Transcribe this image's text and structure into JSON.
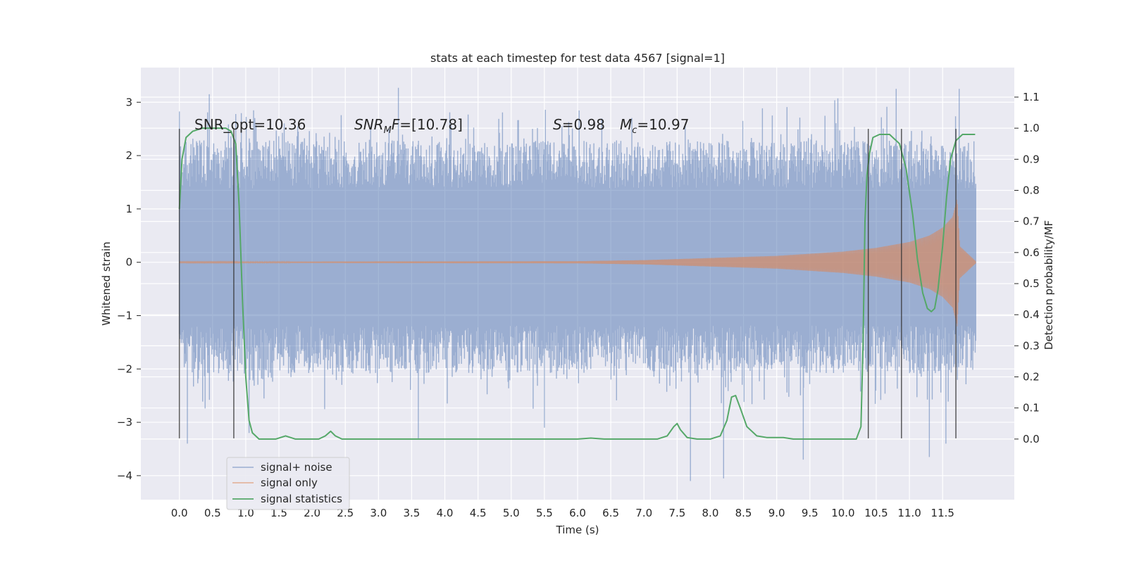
{
  "chart_data": {
    "type": "line",
    "title": "stats at each timestep for test data 4567 [signal=1]",
    "xlabel": "Time (s)",
    "ylabel": "Whitened strain",
    "y2label": "Detection probability/MF",
    "xlim": [
      -0.58,
      12.58
    ],
    "ylim": [
      -4.45,
      3.65
    ],
    "y2lim": [
      -0.195,
      1.195
    ],
    "x_ticks": [
      0.0,
      0.5,
      1.0,
      1.5,
      2.0,
      2.5,
      3.0,
      3.5,
      4.0,
      4.5,
      5.0,
      5.5,
      6.0,
      6.5,
      7.0,
      7.5,
      8.0,
      8.5,
      9.0,
      9.5,
      10.0,
      10.5,
      11.0,
      11.5
    ],
    "x_tick_labels": [
      "0.0",
      "0.5",
      "1.0",
      "1.5",
      "2.0",
      "2.5",
      "3.0",
      "3.5",
      "4.0",
      "4.5",
      "5.0",
      "5.5",
      "6.0",
      "6.5",
      "7.0",
      "7.5",
      "8.0",
      "8.5",
      "9.0",
      "9.5",
      "10.0",
      "10.5",
      "11.0",
      "11.5"
    ],
    "y_ticks": [
      -4,
      -3,
      -2,
      -1,
      0,
      1,
      2,
      3
    ],
    "y_tick_labels": [
      "−4",
      "−3",
      "−2",
      "−1",
      "0",
      "1",
      "2",
      "3"
    ],
    "y2_ticks": [
      0.0,
      0.1,
      0.2,
      0.3,
      0.4,
      0.5,
      0.6,
      0.7,
      0.8,
      0.9,
      1.0,
      1.1
    ],
    "y2_tick_labels": [
      "0.0",
      "0.1",
      "0.2",
      "0.3",
      "0.4",
      "0.5",
      "0.6",
      "0.7",
      "0.8",
      "0.9",
      "1.0",
      "1.1"
    ],
    "grid": true,
    "legend_position": "lower-left",
    "annotations": [
      {
        "text": "SNR_opt=10.36",
        "x": 0.2,
        "y": 2.5
      },
      {
        "text": "SNR_MF=[10.78]",
        "x": 2.6,
        "y": 2.5
      },
      {
        "text": "S=0.98",
        "x": 5.6,
        "y": 2.5
      },
      {
        "text": "Mc=10.97",
        "x": 6.6,
        "y": 2.5
      }
    ],
    "vertical_lines": [
      {
        "x": 0.0,
        "y_range": [
          -3.3,
          2.5
        ]
      },
      {
        "x": 0.82,
        "y_range": [
          -3.3,
          2.5
        ]
      },
      {
        "x": 10.38,
        "y_range": [
          -3.3,
          2.5
        ]
      },
      {
        "x": 10.88,
        "y_range": [
          -3.3,
          2.5
        ]
      },
      {
        "x": 11.7,
        "y_range": [
          -3.3,
          2.5
        ]
      }
    ],
    "series": [
      {
        "name": "signal+ noise",
        "axis": "left",
        "color": "#4c72b0",
        "opacity": 0.5,
        "x_range": [
          0.0,
          12.0
        ],
        "typical_band": [
          -1.5,
          1.7
        ],
        "min": -4.1,
        "max": 3.27,
        "extremes": [
          [
            0.12,
            -3.4
          ],
          [
            0.45,
            3.15
          ],
          [
            1.05,
            -3.2
          ],
          [
            3.3,
            3.27
          ],
          [
            3.6,
            -3.3
          ],
          [
            5.5,
            -3.1
          ],
          [
            7.7,
            -4.1
          ],
          [
            8.2,
            -4.05
          ],
          [
            9.4,
            -3.7
          ],
          [
            10.8,
            3.25
          ],
          [
            11.3,
            -3.65
          ],
          [
            11.55,
            -3.4
          ],
          [
            11.75,
            3.25
          ]
        ]
      },
      {
        "name": "signal only",
        "axis": "left",
        "color": "#dd8452",
        "opacity": 0.6,
        "x_range": [
          0.0,
          12.0
        ],
        "amplitude": [
          [
            0.0,
            0.01
          ],
          [
            6.0,
            0.02
          ],
          [
            7.0,
            0.04
          ],
          [
            8.0,
            0.08
          ],
          [
            9.0,
            0.12
          ],
          [
            10.0,
            0.2
          ],
          [
            10.5,
            0.27
          ],
          [
            11.0,
            0.38
          ],
          [
            11.3,
            0.5
          ],
          [
            11.5,
            0.65
          ],
          [
            11.65,
            0.85
          ],
          [
            11.72,
            1.2
          ],
          [
            11.76,
            0.3
          ],
          [
            12.0,
            0.02
          ]
        ]
      },
      {
        "name": "signal statistics",
        "axis": "right",
        "color": "#55a868",
        "x": [
          0.0,
          0.04,
          0.1,
          0.2,
          0.35,
          0.5,
          0.6,
          0.7,
          0.78,
          0.85,
          0.9,
          0.95,
          1.0,
          1.05,
          1.1,
          1.2,
          1.3,
          1.45,
          1.6,
          1.75,
          1.9,
          2.1,
          2.2,
          2.28,
          2.35,
          2.45,
          2.6,
          2.8,
          3.0,
          3.5,
          4.0,
          4.5,
          5.0,
          5.5,
          6.0,
          6.2,
          6.4,
          6.8,
          7.2,
          7.35,
          7.45,
          7.5,
          7.55,
          7.65,
          7.8,
          8.0,
          8.15,
          8.25,
          8.32,
          8.38,
          8.45,
          8.55,
          8.7,
          8.85,
          9.0,
          9.1,
          9.25,
          9.4,
          9.6,
          9.8,
          10.0,
          10.2,
          10.27,
          10.3,
          10.33,
          10.36,
          10.4,
          10.45,
          10.55,
          10.7,
          10.85,
          10.95,
          11.05,
          11.12,
          11.2,
          11.27,
          11.33,
          11.38,
          11.43,
          11.5,
          11.56,
          11.62,
          11.7,
          11.8,
          11.9,
          11.99
        ],
        "y": [
          0.74,
          0.9,
          0.97,
          0.99,
          1.0,
          1.0,
          1.0,
          1.0,
          0.99,
          0.95,
          0.75,
          0.45,
          0.2,
          0.06,
          0.02,
          0.0,
          0.0,
          0.0,
          0.01,
          0.0,
          0.0,
          0.0,
          0.01,
          0.025,
          0.01,
          0.0,
          0.0,
          0.0,
          0.0,
          0.0,
          0.0,
          0.0,
          0.0,
          0.0,
          0.0,
          0.003,
          0.0,
          0.0,
          0.0,
          0.01,
          0.04,
          0.05,
          0.03,
          0.005,
          0.0,
          0.0,
          0.01,
          0.06,
          0.135,
          0.14,
          0.1,
          0.04,
          0.01,
          0.005,
          0.005,
          0.005,
          0.0,
          0.0,
          0.0,
          0.0,
          0.0,
          0.0,
          0.04,
          0.3,
          0.7,
          0.85,
          0.92,
          0.97,
          0.98,
          0.98,
          0.95,
          0.87,
          0.72,
          0.58,
          0.47,
          0.42,
          0.41,
          0.42,
          0.48,
          0.62,
          0.78,
          0.9,
          0.96,
          0.98,
          0.98,
          0.98
        ]
      }
    ]
  }
}
